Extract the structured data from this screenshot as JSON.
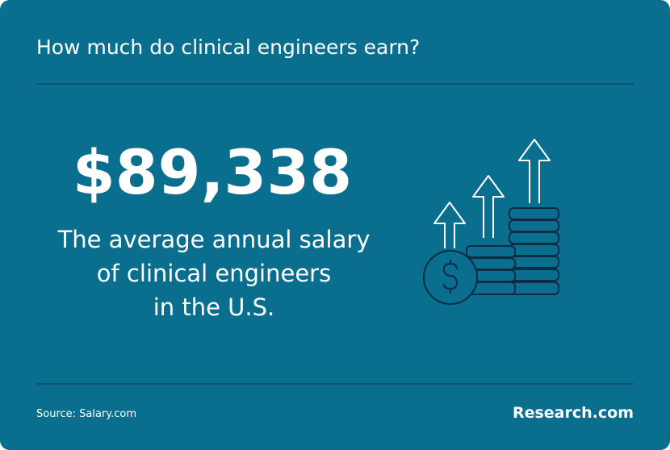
{
  "header": {
    "title": "How much do clinical engineers earn?"
  },
  "stat": {
    "value": "$89,338",
    "description": [
      "The average annual salary",
      "of clinical engineers",
      "in the U.S."
    ]
  },
  "footer": {
    "source": "Source: Salary.com",
    "brand": "Research.com"
  }
}
